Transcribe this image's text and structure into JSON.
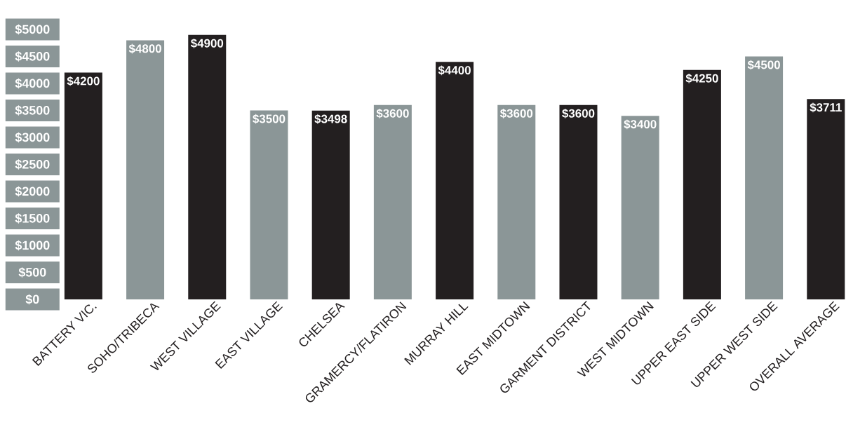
{
  "chart_data": {
    "type": "bar",
    "categories": [
      "BATTERY VIC.",
      "SOHO/TRIBECA",
      "WEST VILLAGE",
      "EAST VILLAGE",
      "CHELSEA",
      "GRAMERCY/FLATIRON",
      "MURRAY HILL",
      "EAST MIDTOWN",
      "GARMENT DISTRICT",
      "WEST MIDTOWN",
      "UPPER EAST SIDE",
      "UPPER WEST SIDE",
      "OVERALL AVERAGE"
    ],
    "values": [
      4200,
      4800,
      4900,
      3500,
      3498,
      3600,
      4400,
      3600,
      3600,
      3400,
      4250,
      4500,
      3711
    ],
    "colors": [
      "#231f20",
      "#8b9697",
      "#231f20",
      "#8b9697",
      "#231f20",
      "#8b9697",
      "#231f20",
      "#8b9697",
      "#231f20",
      "#8b9697",
      "#231f20",
      "#8b9697",
      "#231f20"
    ],
    "value_labels": [
      "$4200",
      "$4800",
      "$4900",
      "$3500",
      "$3498",
      "$3600",
      "$4400",
      "$3600",
      "$3600",
      "$3400",
      "$4250",
      "$4500",
      "$3711"
    ],
    "ylim": [
      0,
      5000
    ],
    "yticks": [
      {
        "value": 0,
        "label": "$0"
      },
      {
        "value": 500,
        "label": "$500"
      },
      {
        "value": 1000,
        "label": "$1000"
      },
      {
        "value": 1500,
        "label": "$1500"
      },
      {
        "value": 2000,
        "label": "$2000"
      },
      {
        "value": 2500,
        "label": "$2500"
      },
      {
        "value": 3000,
        "label": "$3000"
      },
      {
        "value": 3500,
        "label": "$3500"
      },
      {
        "value": 4000,
        "label": "$4000"
      },
      {
        "value": 4500,
        "label": "$4500"
      },
      {
        "value": 5000,
        "label": "$5000"
      }
    ]
  }
}
